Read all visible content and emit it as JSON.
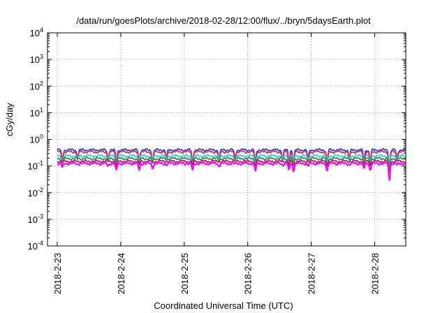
{
  "title": "/data/run/goesPlots/archive/2018-02-28/12:00/flux/../bryn/5daysEarth.plot",
  "chart_data": {
    "type": "line",
    "title": "/data/run/goesPlots/archive/2018-02-28/12:00/flux/../bryn/5daysEarth.plot",
    "xlabel": "Coordinated Universal Time (UTC)",
    "ylabel": "cGy/day",
    "y_scale": "log",
    "ylim": [
      0.0001,
      10000
    ],
    "y_ticks": [
      {
        "base": "10",
        "exp": "4"
      },
      {
        "base": "10",
        "exp": "3"
      },
      {
        "base": "10",
        "exp": "2"
      },
      {
        "base": "10",
        "exp": "1"
      },
      {
        "base": "10",
        "exp": "0"
      },
      {
        "base": "10",
        "exp": "-1"
      },
      {
        "base": "10",
        "exp": "-2"
      },
      {
        "base": "10",
        "exp": "-3"
      },
      {
        "base": "10",
        "exp": "-4"
      }
    ],
    "x_ticks": [
      "2018-2-23",
      "2018-2-24",
      "2018-2-25",
      "2018-2-26",
      "2018-2-27",
      "2018-2-28"
    ],
    "xlim_days": [
      0,
      5.55
    ],
    "grid": true,
    "series": [
      {
        "color": "#1f3bff",
        "level": 0.4
      },
      {
        "color": "#e8293f",
        "level": 0.34
      },
      {
        "color": "#24d0e0",
        "level": 0.24
      },
      {
        "color": "#2f8f3f",
        "level": 0.19
      },
      {
        "color": "#c01060",
        "level": 0.15
      },
      {
        "color": "#ff00ff",
        "level": 0.125
      }
    ],
    "dips": [
      {
        "t": 0.08,
        "min": 0.085
      },
      {
        "t": 0.32,
        "min": 0.12
      },
      {
        "t": 0.8,
        "min": 0.1
      },
      {
        "t": 0.93,
        "min": 0.065
      },
      {
        "t": 1.29,
        "min": 0.07
      },
      {
        "t": 1.5,
        "min": 0.085
      },
      {
        "t": 1.72,
        "min": 0.11
      },
      {
        "t": 2.13,
        "min": 0.07
      },
      {
        "t": 2.55,
        "min": 0.1
      },
      {
        "t": 2.8,
        "min": 0.12
      },
      {
        "t": 3.12,
        "min": 0.065
      },
      {
        "t": 3.55,
        "min": 0.11
      },
      {
        "t": 3.65,
        "min": 0.065
      },
      {
        "t": 3.72,
        "min": 0.065
      },
      {
        "t": 3.95,
        "min": 0.1
      },
      {
        "t": 4.25,
        "min": 0.07
      },
      {
        "t": 4.6,
        "min": 0.11
      },
      {
        "t": 4.83,
        "min": 0.075
      },
      {
        "t": 4.93,
        "min": 0.07
      },
      {
        "t": 5.23,
        "min": 0.03
      },
      {
        "t": 5.35,
        "min": 0.11
      }
    ]
  }
}
